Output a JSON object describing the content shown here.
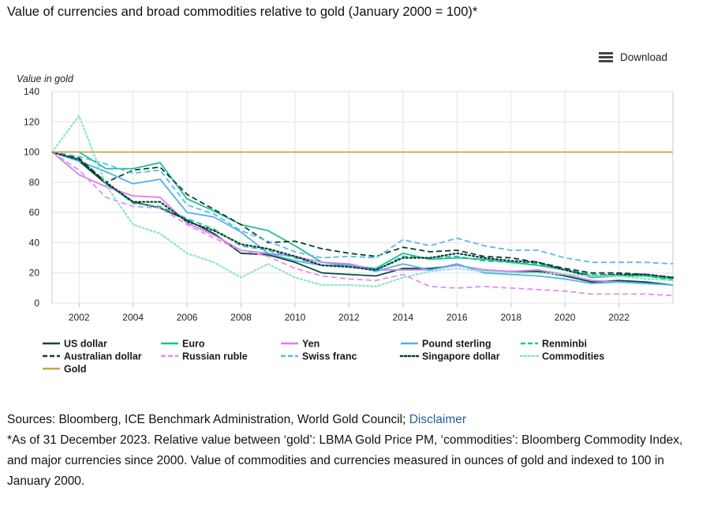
{
  "title": "Value of currencies and broad commodities relative to gold (January 2000 = 100)*",
  "download_label": "Download",
  "footer": {
    "sources_text": "Sources: Bloomberg, ICE Benchmark Administration, World Gold Council; ",
    "disclaimer_link": "Disclaimer",
    "note": "*As of 31 December 2023. Relative value between ‘gold’: LBMA Gold Price PM, ‘commodities’: Bloomberg Commodity Index, and major currencies since 2000. Value of commodities and currencies measured in ounces of gold and indexed to 100 in January 2000."
  },
  "chart_data": {
    "type": "line",
    "title": "Value of currencies and broad commodities relative to gold (January 2000 = 100)*",
    "ylabel": "Value in gold",
    "xlabel": "",
    "ylim": [
      0,
      140
    ],
    "xlim": [
      2001,
      2024
    ],
    "yticks": [
      0,
      20,
      40,
      60,
      80,
      100,
      120,
      140
    ],
    "xticks": [
      2002,
      2004,
      2006,
      2008,
      2010,
      2012,
      2014,
      2016,
      2018,
      2020,
      2022
    ],
    "grid": true,
    "x": [
      2001,
      2002,
      2003,
      2004,
      2005,
      2006,
      2007,
      2008,
      2009,
      2010,
      2011,
      2012,
      2013,
      2014,
      2015,
      2016,
      2017,
      2018,
      2019,
      2020,
      2021,
      2022,
      2023,
      2024
    ],
    "series": [
      {
        "name": "US dollar",
        "color": "#0b4a3e",
        "dash": "solid",
        "values": [
          100,
          94,
          79,
          67,
          63,
          55,
          46,
          33,
          32,
          27,
          20,
          19,
          18,
          23,
          23,
          25,
          22,
          21,
          21,
          18,
          14,
          15,
          14,
          12
        ]
      },
      {
        "name": "Euro",
        "color": "#1cc091",
        "dash": "solid",
        "values": [
          100,
          100,
          89,
          89,
          93,
          69,
          61,
          52,
          48,
          38,
          27,
          25,
          23,
          33,
          29,
          30,
          29,
          27,
          25,
          22,
          17,
          18,
          18,
          16
        ]
      },
      {
        "name": "Yen",
        "color": "#d77ff0",
        "dash": "solid",
        "values": [
          100,
          85,
          77,
          71,
          70,
          53,
          45,
          35,
          33,
          31,
          27,
          26,
          22,
          22,
          22,
          25,
          22,
          21,
          22,
          19,
          15,
          14,
          13,
          12
        ]
      },
      {
        "name": "Pound sterling",
        "color": "#54b0ee",
        "dash": "solid",
        "values": [
          100,
          94,
          87,
          79,
          82,
          60,
          57,
          47,
          33,
          28,
          25,
          25,
          21,
          26,
          22,
          26,
          20,
          19,
          18,
          16,
          13,
          14,
          13,
          12
        ]
      },
      {
        "name": "Renminbi",
        "color": "#17c79a",
        "dash": "dashed",
        "values": [
          100,
          95,
          80,
          66,
          64,
          56,
          49,
          38,
          35,
          30,
          25,
          24,
          22,
          31,
          30,
          31,
          28,
          27,
          26,
          22,
          19,
          19,
          18,
          15
        ]
      },
      {
        "name": "Australian dollar",
        "color": "#0d3f36",
        "dash": "dashed",
        "values": [
          100,
          96,
          80,
          88,
          90,
          72,
          62,
          52,
          40,
          41,
          36,
          33,
          31,
          37,
          34,
          35,
          31,
          30,
          27,
          23,
          20,
          20,
          19,
          17
        ]
      },
      {
        "name": "Russian ruble",
        "color": "#e28ef2",
        "dash": "dashed",
        "values": [
          100,
          88,
          70,
          64,
          63,
          52,
          43,
          35,
          31,
          23,
          18,
          16,
          15,
          19,
          11,
          10,
          11,
          10,
          9,
          8,
          6,
          6,
          6,
          5
        ]
      },
      {
        "name": "Swiss franc",
        "color": "#58b8f0",
        "dash": "dashed",
        "values": [
          100,
          97,
          92,
          86,
          88,
          65,
          59,
          48,
          41,
          34,
          30,
          31,
          30,
          42,
          38,
          43,
          38,
          35,
          35,
          30,
          27,
          27,
          27,
          26
        ]
      },
      {
        "name": "Singapore dollar",
        "color": "#0c3d34",
        "dash": "dotted",
        "values": [
          100,
          95,
          80,
          67,
          67,
          54,
          48,
          39,
          36,
          31,
          25,
          24,
          22,
          30,
          30,
          33,
          30,
          28,
          27,
          22,
          18,
          19,
          19,
          17
        ]
      },
      {
        "name": "Commodities",
        "color": "#8fe5c9",
        "dash": "dotted",
        "values": [
          100,
          124,
          78,
          52,
          46,
          33,
          27,
          17,
          26,
          17,
          12,
          12,
          11,
          17,
          21,
          23,
          21,
          20,
          20,
          19,
          18,
          18,
          16,
          15
        ]
      },
      {
        "name": "Gold",
        "color": "#c9a447",
        "dash": "solid",
        "values": [
          100,
          100,
          100,
          100,
          100,
          100,
          100,
          100,
          100,
          100,
          100,
          100,
          100,
          100,
          100,
          100,
          100,
          100,
          100,
          100,
          100,
          100,
          100,
          100
        ]
      }
    ]
  }
}
